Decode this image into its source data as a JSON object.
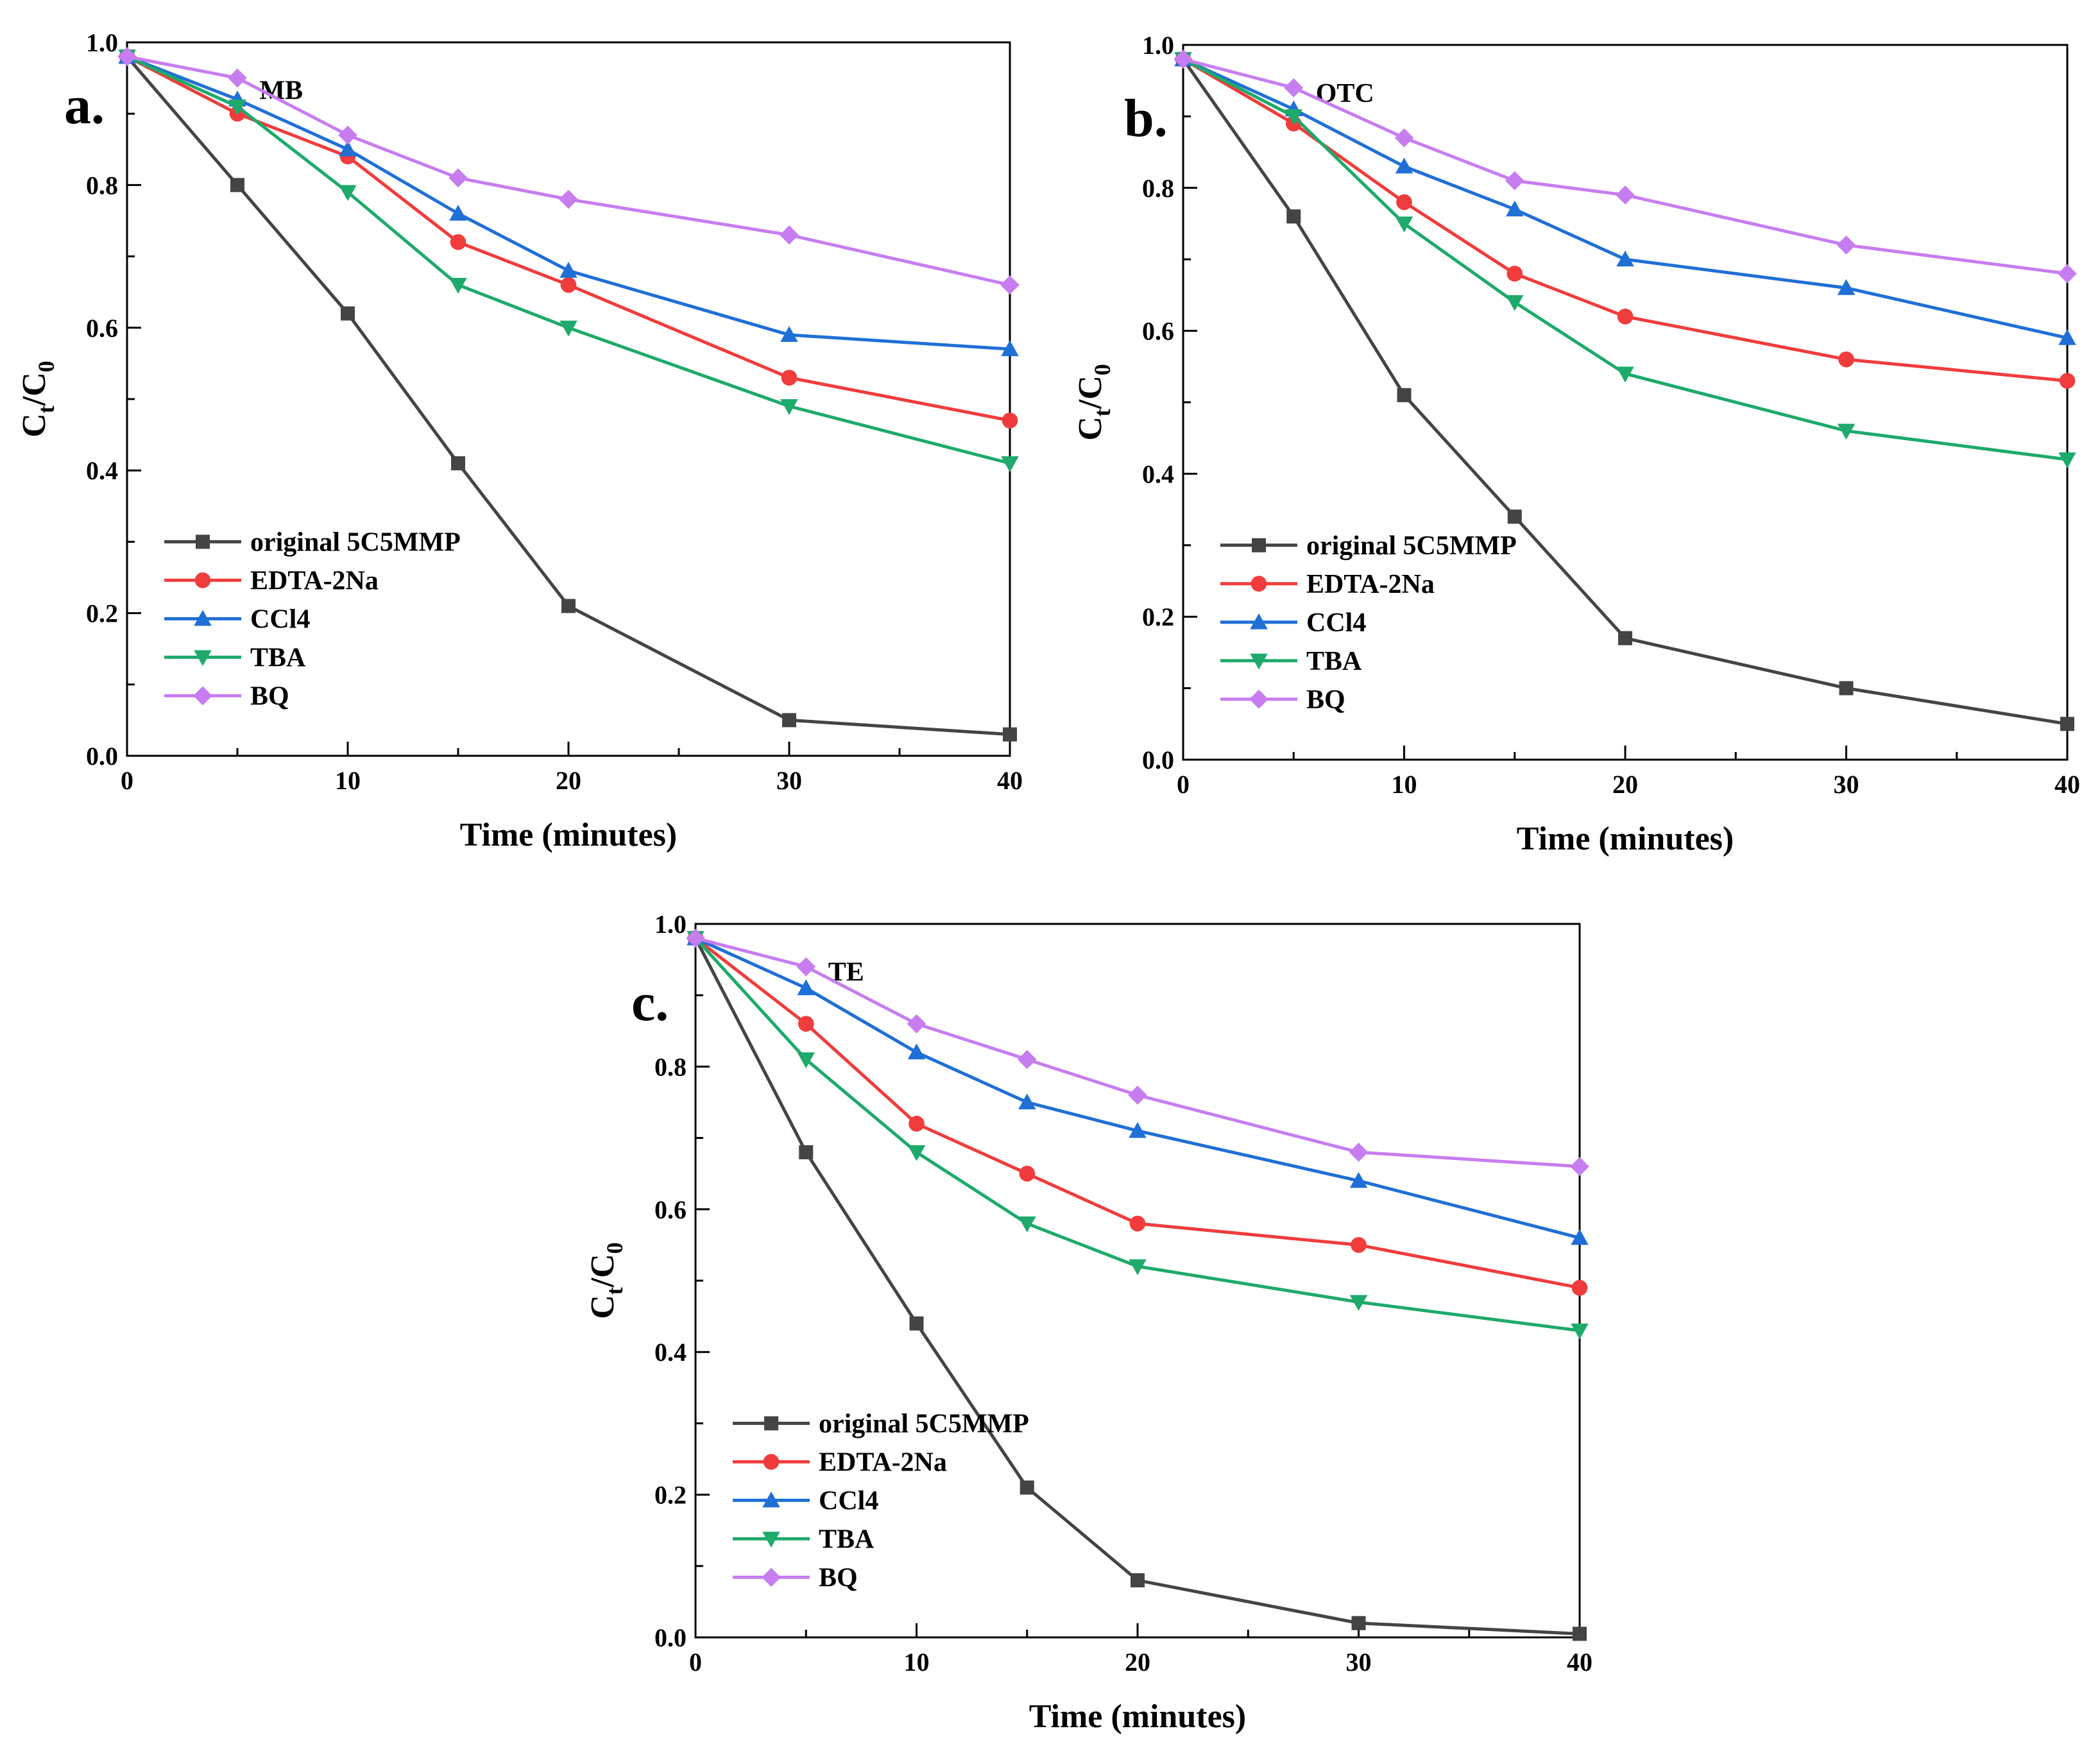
{
  "chart_data": [
    {
      "type": "line",
      "panel": "a.",
      "title": "MB",
      "xlabel": "Time (minutes)",
      "ylabel": {
        "main": "C",
        "sub1": "t",
        "mid": "/C",
        "sub2": "0"
      },
      "xlim": [
        0,
        40
      ],
      "ylim": [
        0,
        1.0
      ],
      "x_ticks": [
        "0",
        "10",
        "20",
        "30",
        "40"
      ],
      "y_ticks": [
        "0.0",
        "0.2",
        "0.4",
        "0.6",
        "0.8",
        "1.0"
      ],
      "x": [
        0,
        5,
        10,
        15,
        20,
        30,
        40
      ],
      "legend_position": "bottom-left",
      "series": [
        {
          "name": "original 5C5MMP",
          "color": "#444444",
          "marker": "square",
          "values": [
            0.98,
            0.8,
            0.62,
            0.41,
            0.21,
            0.05,
            0.03
          ]
        },
        {
          "name": "EDTA-2Na",
          "color": "#f03c3c",
          "marker": "circle",
          "values": [
            0.98,
            0.9,
            0.84,
            0.72,
            0.66,
            0.53,
            0.47
          ]
        },
        {
          "name": "CCl4",
          "color": "#1f6fd6",
          "marker": "triangle",
          "values": [
            0.98,
            0.92,
            0.85,
            0.76,
            0.68,
            0.59,
            0.57
          ]
        },
        {
          "name": "TBA",
          "color": "#1daa6b",
          "marker": "tri-down",
          "values": [
            0.98,
            0.91,
            0.79,
            0.66,
            0.6,
            0.49,
            0.41
          ]
        },
        {
          "name": "BQ",
          "color": "#c77df0",
          "marker": "diamond",
          "values": [
            0.98,
            0.95,
            0.87,
            0.81,
            0.78,
            0.73,
            0.66
          ]
        }
      ]
    },
    {
      "type": "line",
      "panel": "b.",
      "title": "OTC",
      "xlabel": "Time (minutes)",
      "ylabel": {
        "main": "C",
        "sub1": "t",
        "mid": "/C",
        "sub2": "0"
      },
      "xlim": [
        0,
        40
      ],
      "ylim": [
        0,
        1.0
      ],
      "x_ticks": [
        "0",
        "10",
        "20",
        "30",
        "40"
      ],
      "y_ticks": [
        "0.0",
        "0.2",
        "0.4",
        "0.6",
        "0.8",
        "1.0"
      ],
      "x": [
        0,
        5,
        10,
        15,
        20,
        30,
        40
      ],
      "legend_position": "bottom-left",
      "series": [
        {
          "name": "original 5C5MMP",
          "color": "#444444",
          "marker": "square",
          "values": [
            0.98,
            0.76,
            0.51,
            0.34,
            0.17,
            0.1,
            0.05
          ]
        },
        {
          "name": "EDTA-2Na",
          "color": "#f03c3c",
          "marker": "circle",
          "values": [
            0.98,
            0.89,
            0.78,
            0.68,
            0.62,
            0.56,
            0.53
          ]
        },
        {
          "name": "CCl4",
          "color": "#1f6fd6",
          "marker": "triangle",
          "values": [
            0.98,
            0.91,
            0.83,
            0.77,
            0.7,
            0.66,
            0.59
          ]
        },
        {
          "name": "TBA",
          "color": "#1daa6b",
          "marker": "tri-down",
          "values": [
            0.98,
            0.9,
            0.75,
            0.64,
            0.54,
            0.46,
            0.42
          ]
        },
        {
          "name": "BQ",
          "color": "#c77df0",
          "marker": "diamond",
          "values": [
            0.98,
            0.94,
            0.87,
            0.81,
            0.79,
            0.72,
            0.68
          ]
        }
      ]
    },
    {
      "type": "line",
      "panel": "c.",
      "title": "TE",
      "xlabel": "Time (minutes)",
      "ylabel": {
        "main": "C",
        "sub1": "t",
        "mid": "/C",
        "sub2": "0"
      },
      "xlim": [
        0,
        40
      ],
      "ylim": [
        0,
        1.0
      ],
      "x_ticks": [
        "0",
        "10",
        "20",
        "30",
        "40"
      ],
      "y_ticks": [
        "0.0",
        "0.2",
        "0.4",
        "0.6",
        "0.8",
        "1.0"
      ],
      "x": [
        0,
        5,
        10,
        15,
        20,
        30,
        40
      ],
      "legend_position": "bottom-left",
      "series": [
        {
          "name": "original 5C5MMP",
          "color": "#444444",
          "marker": "square",
          "values": [
            0.98,
            0.68,
            0.44,
            0.21,
            0.08,
            0.02,
            0.005
          ]
        },
        {
          "name": "EDTA-2Na",
          "color": "#f03c3c",
          "marker": "circle",
          "values": [
            0.98,
            0.86,
            0.72,
            0.65,
            0.58,
            0.55,
            0.49
          ]
        },
        {
          "name": "CCl4",
          "color": "#1f6fd6",
          "marker": "triangle",
          "values": [
            0.98,
            0.91,
            0.82,
            0.75,
            0.71,
            0.64,
            0.56
          ]
        },
        {
          "name": "TBA",
          "color": "#1daa6b",
          "marker": "tri-down",
          "values": [
            0.98,
            0.81,
            0.68,
            0.58,
            0.52,
            0.47,
            0.43
          ]
        },
        {
          "name": "BQ",
          "color": "#c77df0",
          "marker": "diamond",
          "values": [
            0.98,
            0.94,
            0.86,
            0.81,
            0.76,
            0.68,
            0.66
          ]
        }
      ]
    }
  ]
}
